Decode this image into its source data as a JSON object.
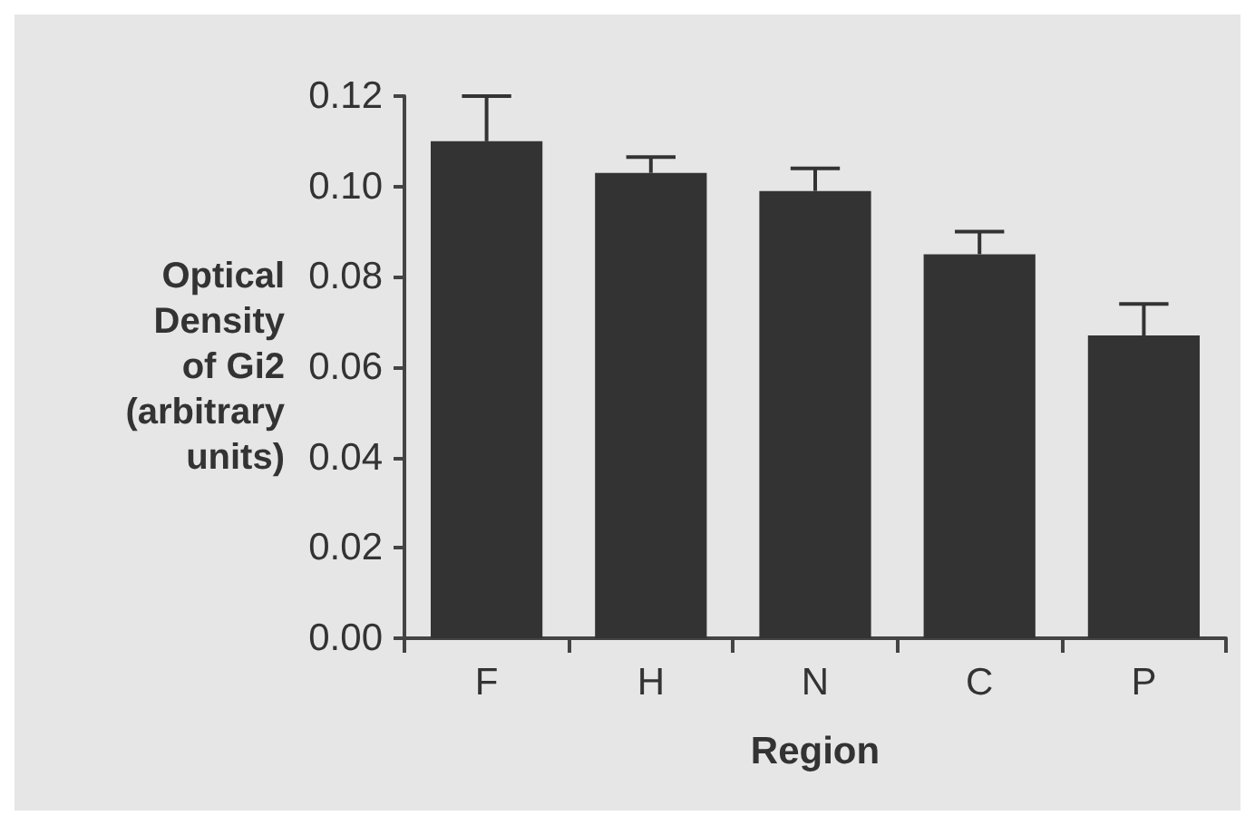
{
  "chart_data": {
    "type": "bar",
    "xlabel": "Region",
    "ylabel": "Optical\nDensity\nof Gi2\n(arbitrary\nunits)",
    "categories": [
      "F",
      "H",
      "N",
      "C",
      "P"
    ],
    "values": [
      0.11,
      0.103,
      0.099,
      0.085,
      0.067
    ],
    "errors": [
      [
        0.11,
        0.12
      ],
      [
        0.103,
        0.1065
      ],
      [
        0.099,
        0.104
      ],
      [
        0.085,
        0.09
      ],
      [
        0.067,
        0.074
      ]
    ],
    "color": "#333333",
    "ylim": [
      0,
      0.12
    ],
    "yticks": [
      {
        "value": 0,
        "label": "0.00"
      },
      {
        "value": 0.02,
        "label": "0.02"
      },
      {
        "value": 0.04,
        "label": "0.04"
      },
      {
        "value": 0.06,
        "label": "0.06"
      },
      {
        "value": 0.08,
        "label": "0.08"
      },
      {
        "value": 0.1,
        "label": "0.10"
      },
      {
        "value": 0.12,
        "label": "0.12"
      }
    ],
    "grid": false
  }
}
